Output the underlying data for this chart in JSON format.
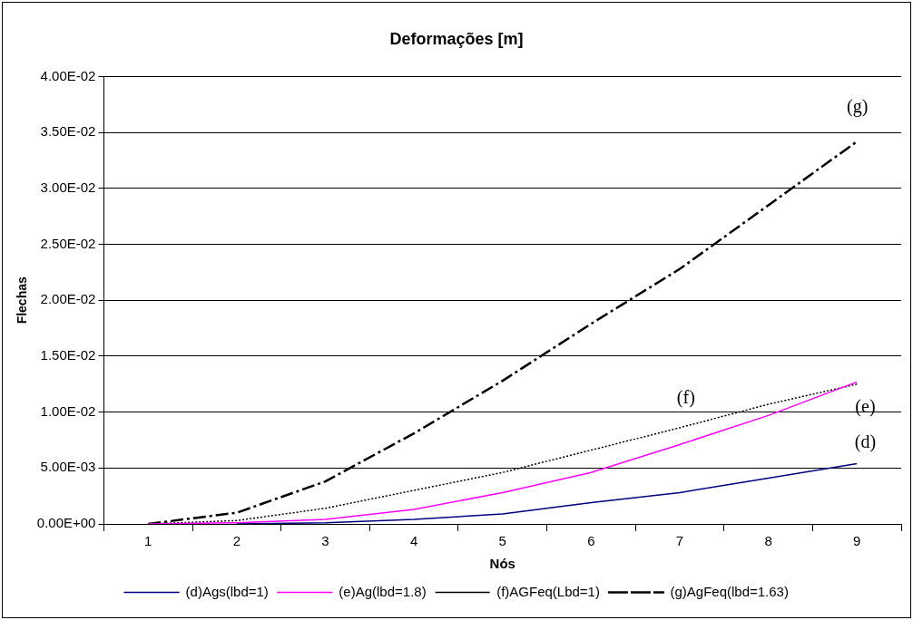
{
  "chart_data": {
    "type": "line",
    "title": "Deformações [m]",
    "xlabel": "Nós",
    "ylabel": "Flechas",
    "categories": [
      "1",
      "2",
      "3",
      "4",
      "5",
      "6",
      "7",
      "8",
      "9"
    ],
    "series": [
      {
        "name": "(d)Ags(lbd=1)",
        "color": "#000080",
        "line_style": "solid",
        "values": [
          null,
          0,
          0.0001,
          0.0004,
          0.0009,
          0.0019,
          0.0028,
          0.0041,
          0.0054
        ]
      },
      {
        "name": "(e)Ag(lbd=1.8)",
        "color": "#ff00ff",
        "line_style": "solid",
        "values": [
          0,
          0.0001,
          0.0004,
          0.0013,
          0.0028,
          0.0046,
          0.0071,
          0.0097,
          0.0127
        ]
      },
      {
        "name": "(f)AGFeq(Lbd=1)",
        "color": "#000000",
        "line_style": "dotted",
        "values": [
          0,
          0.0003,
          0.0014,
          0.003,
          0.0046,
          0.0066,
          0.0086,
          0.0107,
          0.0125
        ]
      },
      {
        "name": "(g)AgFeq(lbd=1.63)",
        "color": "#000000",
        "line_style": "dashdot",
        "values": [
          0,
          0.001,
          0.0038,
          0.0081,
          0.0128,
          0.0179,
          0.0228,
          0.0285,
          0.0342
        ]
      }
    ],
    "ylim": [
      0,
      0.04
    ],
    "yticks": [
      {
        "value": 0,
        "label": "0.00E+00"
      },
      {
        "value": 0.005,
        "label": "5.00E-03"
      },
      {
        "value": 0.01,
        "label": "1.00E-02"
      },
      {
        "value": 0.015,
        "label": "1.50E-02"
      },
      {
        "value": 0.02,
        "label": "2.00E-02"
      },
      {
        "value": 0.025,
        "label": "2.50E-02"
      },
      {
        "value": 0.03,
        "label": "3.00E-02"
      },
      {
        "value": 0.035,
        "label": "3.50E-02"
      },
      {
        "value": 0.04,
        "label": "4.00E-02"
      }
    ],
    "annotations": [
      "(g)",
      "(f)",
      "(e)",
      "(d)"
    ],
    "grid": "y",
    "legend": "bottom",
    "marker": "none"
  }
}
